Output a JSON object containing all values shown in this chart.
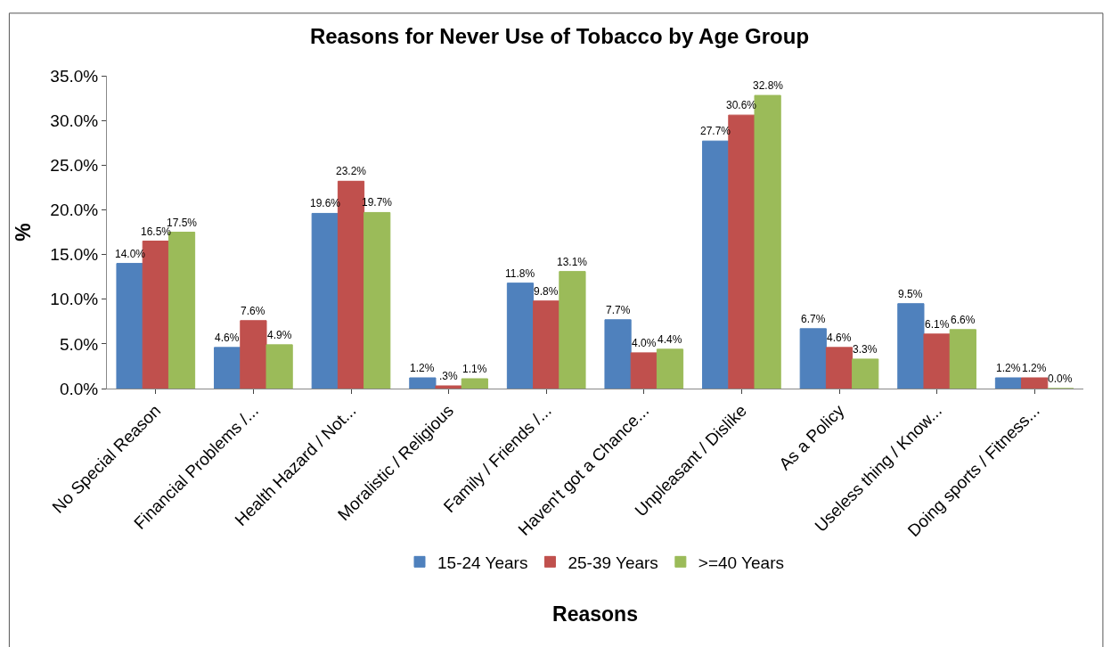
{
  "chart_data": {
    "type": "bar",
    "title": "Reasons for Never Use of Tobacco by Age Group",
    "xlabel": "Reasons",
    "ylabel": "%",
    "categories": [
      "No Special Reason",
      "Financial Problems /...",
      "Health Hazard / Not...",
      "Moralistic / Religious",
      "Family / Friends /...",
      "Haven't got a Chance...",
      "Unpleasant / Dislike",
      "As a Policy",
      "Useless thing / Know...",
      "Doing sports / Fitness..."
    ],
    "series": [
      {
        "name": "15-24 Years",
        "color": "#4f81bd",
        "values": [
          14.0,
          4.6,
          19.6,
          1.2,
          11.8,
          7.7,
          27.7,
          6.7,
          9.5,
          1.2
        ],
        "value_labels": [
          "14.0%",
          "4.6%",
          "19.6%",
          "1.2%",
          "11.8%",
          "7.7%",
          "27.7%",
          "6.7%",
          "9.5%",
          "1.2%"
        ]
      },
      {
        "name": "25-39 Years",
        "color": "#c0504d",
        "values": [
          16.5,
          7.6,
          23.2,
          0.3,
          9.8,
          4.0,
          30.6,
          4.6,
          6.1,
          1.2
        ],
        "value_labels": [
          "16.5%",
          "7.6%",
          "23.2%",
          ".3%",
          "9.8%",
          "4.0%",
          "30.6%",
          "4.6%",
          "6.1%",
          "1.2%"
        ]
      },
      {
        "name": ">=40 Years",
        "color": "#9bbb59",
        "values": [
          17.5,
          4.9,
          19.7,
          1.1,
          13.1,
          4.4,
          32.8,
          3.3,
          6.6,
          0.0
        ],
        "value_labels": [
          "17.5%",
          "4.9%",
          "19.7%",
          "1.1%",
          "13.1%",
          "4.4%",
          "32.8%",
          "3.3%",
          "6.6%",
          "0.0%"
        ]
      }
    ],
    "ylim": [
      0,
      35
    ],
    "yticks": [
      {
        "value": 0,
        "label": "0.0%"
      },
      {
        "value": 5,
        "label": "5.0%"
      },
      {
        "value": 10,
        "label": "10.0%"
      },
      {
        "value": 15,
        "label": "15.0%"
      },
      {
        "value": 20,
        "label": "20.0%"
      },
      {
        "value": 25,
        "label": "25.0%"
      },
      {
        "value": 30,
        "label": "30.0%"
      },
      {
        "value": 35,
        "label": "35.0%"
      }
    ],
    "legend": "bottom"
  }
}
